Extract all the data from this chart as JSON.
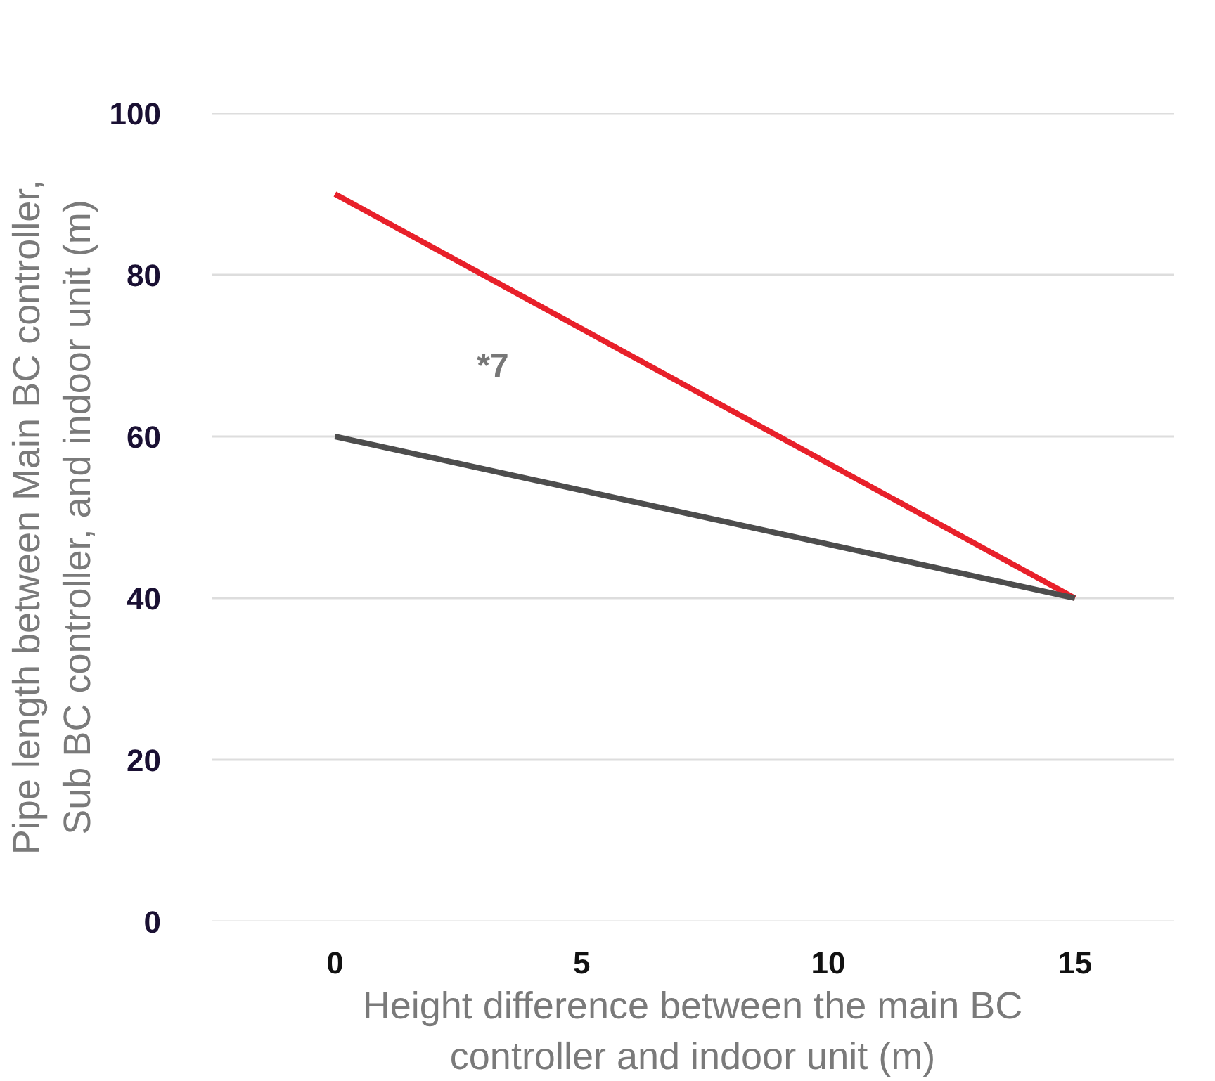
{
  "chart_data": {
    "type": "line",
    "xlabel": "Height difference between the main BC\ncontroller and indoor unit (m)",
    "ylabel": "Pipe length between Main BC controller,\nSub BC controller, and indoor unit (m)",
    "x": [
      0,
      15
    ],
    "series": [
      {
        "color": "#e8202a",
        "values": [
          90,
          40
        ]
      },
      {
        "color": "#4d4d4d",
        "values": [
          60,
          40
        ]
      }
    ],
    "annotations": [
      "*7"
    ],
    "xlim": [
      -2.5,
      17
    ],
    "ylim": [
      0,
      100
    ],
    "xticks": [
      0,
      5,
      10,
      15
    ],
    "yticks": [
      0,
      20,
      40,
      60,
      80,
      100
    ],
    "grid": "y",
    "marker": "none",
    "line_style": "solid"
  }
}
